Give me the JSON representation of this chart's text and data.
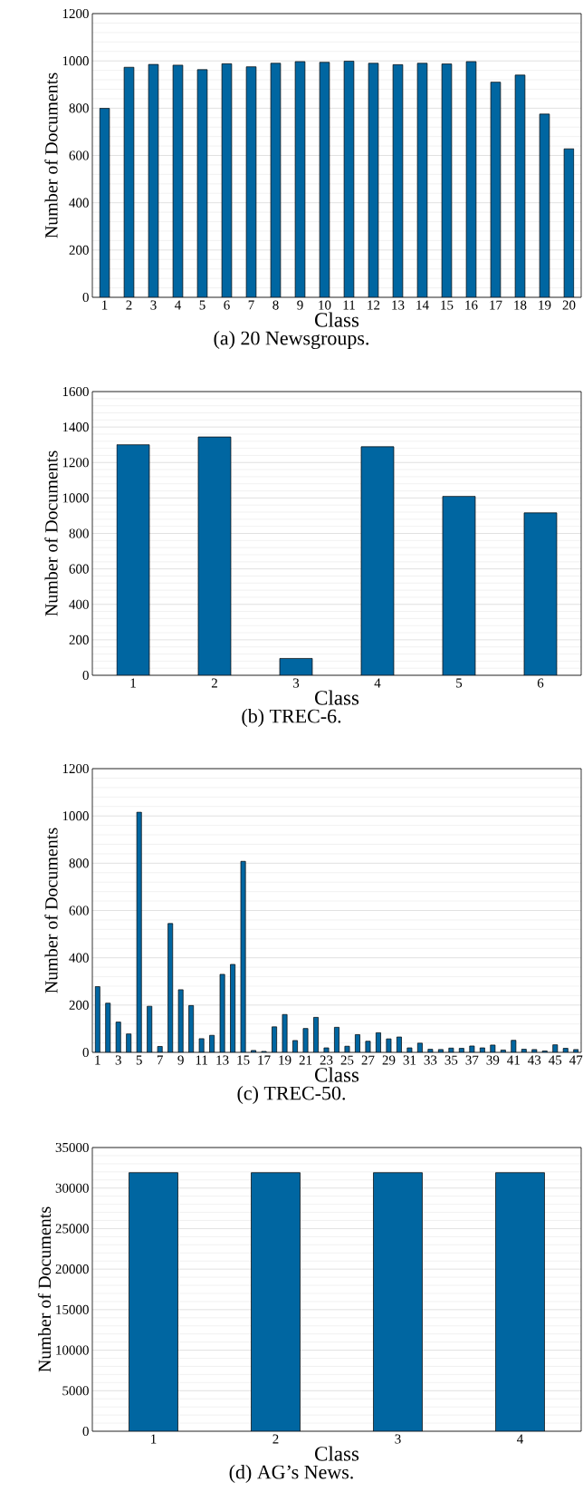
{
  "chart_data": [
    {
      "type": "bar",
      "title": "(a) 20 Newsgroups.",
      "xlabel": "Class",
      "ylabel": "Number of Documents",
      "color": "#0066a1",
      "grid": "y",
      "ylim": [
        0,
        1200
      ],
      "yticks": [
        0,
        200,
        400,
        600,
        800,
        1000,
        1200
      ],
      "categories": [
        "1",
        "2",
        "3",
        "4",
        "5",
        "6",
        "7",
        "8",
        "9",
        "10",
        "11",
        "12",
        "13",
        "14",
        "15",
        "16",
        "17",
        "18",
        "19",
        "20"
      ],
      "values": [
        799,
        973,
        985,
        982,
        963,
        988,
        975,
        990,
        997,
        994,
        999,
        990,
        984,
        990,
        987,
        997,
        910,
        940,
        775,
        628
      ]
    },
    {
      "type": "bar",
      "title": "(b) TREC-6.",
      "xlabel": "Class",
      "ylabel": "Number of Documents",
      "color": "#0066a1",
      "grid": "y",
      "ylim": [
        0,
        1600
      ],
      "yticks": [
        0,
        200,
        400,
        600,
        800,
        1000,
        1200,
        1400,
        1600
      ],
      "categories": [
        "1",
        "2",
        "3",
        "4",
        "5",
        "6"
      ],
      "values": [
        1300,
        1344,
        95,
        1289,
        1009,
        916
      ]
    },
    {
      "type": "bar",
      "title": "(c) TREC-50.",
      "xlabel": "Class",
      "ylabel": "Number of Documents",
      "color": "#0066a1",
      "grid": "y",
      "ylim": [
        0,
        1200
      ],
      "yticks": [
        0,
        200,
        400,
        600,
        800,
        1000,
        1200
      ],
      "categories": [
        "1",
        null,
        "3",
        null,
        "5",
        null,
        "7",
        null,
        "9",
        null,
        "11",
        null,
        "13",
        null,
        "15",
        null,
        "17",
        null,
        "19",
        null,
        "21",
        null,
        "23",
        null,
        "25",
        null,
        "27",
        null,
        "29",
        null,
        "31",
        null,
        "33",
        null,
        "35",
        null,
        "37",
        null,
        "39",
        null,
        "41",
        null,
        "43",
        null,
        "45",
        null,
        "47"
      ],
      "values": [
        278,
        208,
        128,
        78,
        1016,
        195,
        25,
        545,
        265,
        198,
        58,
        72,
        330,
        372,
        808,
        8,
        4,
        108,
        160,
        50,
        101,
        148,
        19,
        106,
        26,
        75,
        47,
        83,
        57,
        65,
        19,
        39,
        13,
        12,
        18,
        17,
        27,
        19,
        31,
        10,
        51,
        13,
        12,
        6,
        32,
        17,
        12
      ]
    },
    {
      "type": "bar",
      "title": "(d) AG’s News.",
      "xlabel": "Class",
      "ylabel": "Number of Documents",
      "color": "#0066a1",
      "grid": "y",
      "ylim": [
        0,
        35000
      ],
      "yticks": [
        0,
        5000,
        10000,
        15000,
        20000,
        25000,
        30000,
        35000
      ],
      "categories": [
        "1",
        "2",
        "3",
        "4"
      ],
      "values": [
        31900,
        31900,
        31900,
        31900
      ]
    }
  ]
}
